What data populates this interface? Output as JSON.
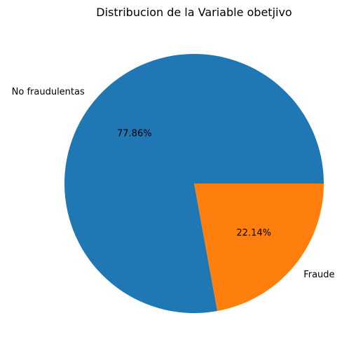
{
  "chart_data": {
    "type": "pie",
    "title": "Distribucion de la Variable obetjivo",
    "slices": [
      {
        "label": "No fraudulentas",
        "value": 77.86,
        "pct_label": "77.86%",
        "color": "#1f77b4"
      },
      {
        "label": "Fraude",
        "value": 22.14,
        "pct_label": "22.14%",
        "color": "#ff7f0e"
      }
    ],
    "start_angle_deg": 0,
    "direction": "counterclockwise",
    "legend": "none"
  }
}
